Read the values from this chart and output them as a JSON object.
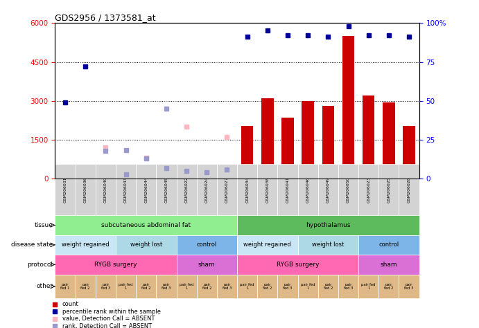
{
  "title": "GDS2956 / 1373581_at",
  "samples": [
    "GSM206031",
    "GSM206036",
    "GSM206040",
    "GSM206043",
    "GSM206044",
    "GSM206045",
    "GSM206022",
    "GSM206024",
    "GSM206027",
    "GSM206034",
    "GSM206038",
    "GSM206041",
    "GSM206046",
    "GSM206049",
    "GSM206050",
    "GSM206023",
    "GSM206025",
    "GSM206028"
  ],
  "count_values": [
    50,
    150,
    50,
    50,
    50,
    70,
    50,
    60,
    50,
    2050,
    3100,
    2350,
    3000,
    2800,
    5500,
    3200,
    2950,
    2050
  ],
  "count_absent": [
    true,
    false,
    true,
    true,
    true,
    true,
    true,
    true,
    true,
    false,
    false,
    false,
    false,
    false,
    false,
    false,
    false,
    false
  ],
  "percentile_pct": [
    49,
    72,
    null,
    null,
    null,
    null,
    null,
    null,
    null,
    91,
    95,
    92,
    92,
    91,
    98,
    92,
    92,
    91
  ],
  "pct_absent": [
    null,
    null,
    18,
    3,
    13,
    7,
    5,
    4,
    6,
    null,
    null,
    null,
    null,
    null,
    null,
    null,
    null,
    null
  ],
  "value_absent": [
    null,
    null,
    1200,
    null,
    800,
    null,
    2000,
    null,
    1600,
    null,
    null,
    null,
    null,
    null,
    null,
    null,
    null,
    null
  ],
  "rank_absent_scaled": [
    null,
    null,
    null,
    1100,
    null,
    2700,
    null,
    400,
    null,
    null,
    null,
    null,
    null,
    null,
    null,
    null,
    null,
    null
  ],
  "ylim_left": [
    0,
    6000
  ],
  "ylim_right": [
    0,
    100
  ],
  "yticks_left": [
    0,
    1500,
    3000,
    4500,
    6000
  ],
  "yticks_right": [
    0,
    25,
    50,
    75,
    100
  ],
  "tissue_groups": [
    {
      "label": "subcutaneous abdominal fat",
      "start": 0,
      "end": 9,
      "color": "#90EE90"
    },
    {
      "label": "hypothalamus",
      "start": 9,
      "end": 18,
      "color": "#5DBB5D"
    }
  ],
  "disease_groups": [
    {
      "label": "weight regained",
      "start": 0,
      "end": 3,
      "color": "#C8E6F5"
    },
    {
      "label": "weight lost",
      "start": 3,
      "end": 6,
      "color": "#ADD8E6"
    },
    {
      "label": "control",
      "start": 6,
      "end": 9,
      "color": "#7EB5E8"
    },
    {
      "label": "weight regained",
      "start": 9,
      "end": 12,
      "color": "#C8E6F5"
    },
    {
      "label": "weight lost",
      "start": 12,
      "end": 15,
      "color": "#ADD8E6"
    },
    {
      "label": "control",
      "start": 15,
      "end": 18,
      "color": "#7EB5E8"
    }
  ],
  "protocol_groups": [
    {
      "label": "RYGB surgery",
      "start": 0,
      "end": 6,
      "color": "#FF69B4"
    },
    {
      "label": "sham",
      "start": 6,
      "end": 9,
      "color": "#DA70D6"
    },
    {
      "label": "RYGB surgery",
      "start": 9,
      "end": 15,
      "color": "#FF69B4"
    },
    {
      "label": "sham",
      "start": 15,
      "end": 18,
      "color": "#DA70D6"
    }
  ],
  "other_labels": [
    "pair\nfed 1",
    "pair\nfed 2",
    "pair\nfed 3",
    "pair fed\n1",
    "pair\nfed 2",
    "pair\nfed 3",
    "pair fed\n1",
    "pair\nfed 2",
    "pair\nfed 3",
    "pair fed\n1",
    "pair\nfed 2",
    "pair\nfed 3",
    "pair fed\n1",
    "pair\nfed 2",
    "pair\nfed 3",
    "pair fed\n1",
    "pair\nfed 2",
    "pair\nfed 3"
  ],
  "other_color": "#DEB887",
  "bar_color": "#CC0000",
  "absent_bar_color": "#FFB6C1",
  "percentile_color": "#000099",
  "percentile_absent_color": "#9999CC",
  "bg_color": "#FFFFFF",
  "legend_items": [
    {
      "label": "count",
      "color": "#CC0000"
    },
    {
      "label": "percentile rank within the sample",
      "color": "#000099"
    },
    {
      "label": "value, Detection Call = ABSENT",
      "color": "#FFB6C1"
    },
    {
      "label": "rank, Detection Call = ABSENT",
      "color": "#9999CC"
    }
  ]
}
